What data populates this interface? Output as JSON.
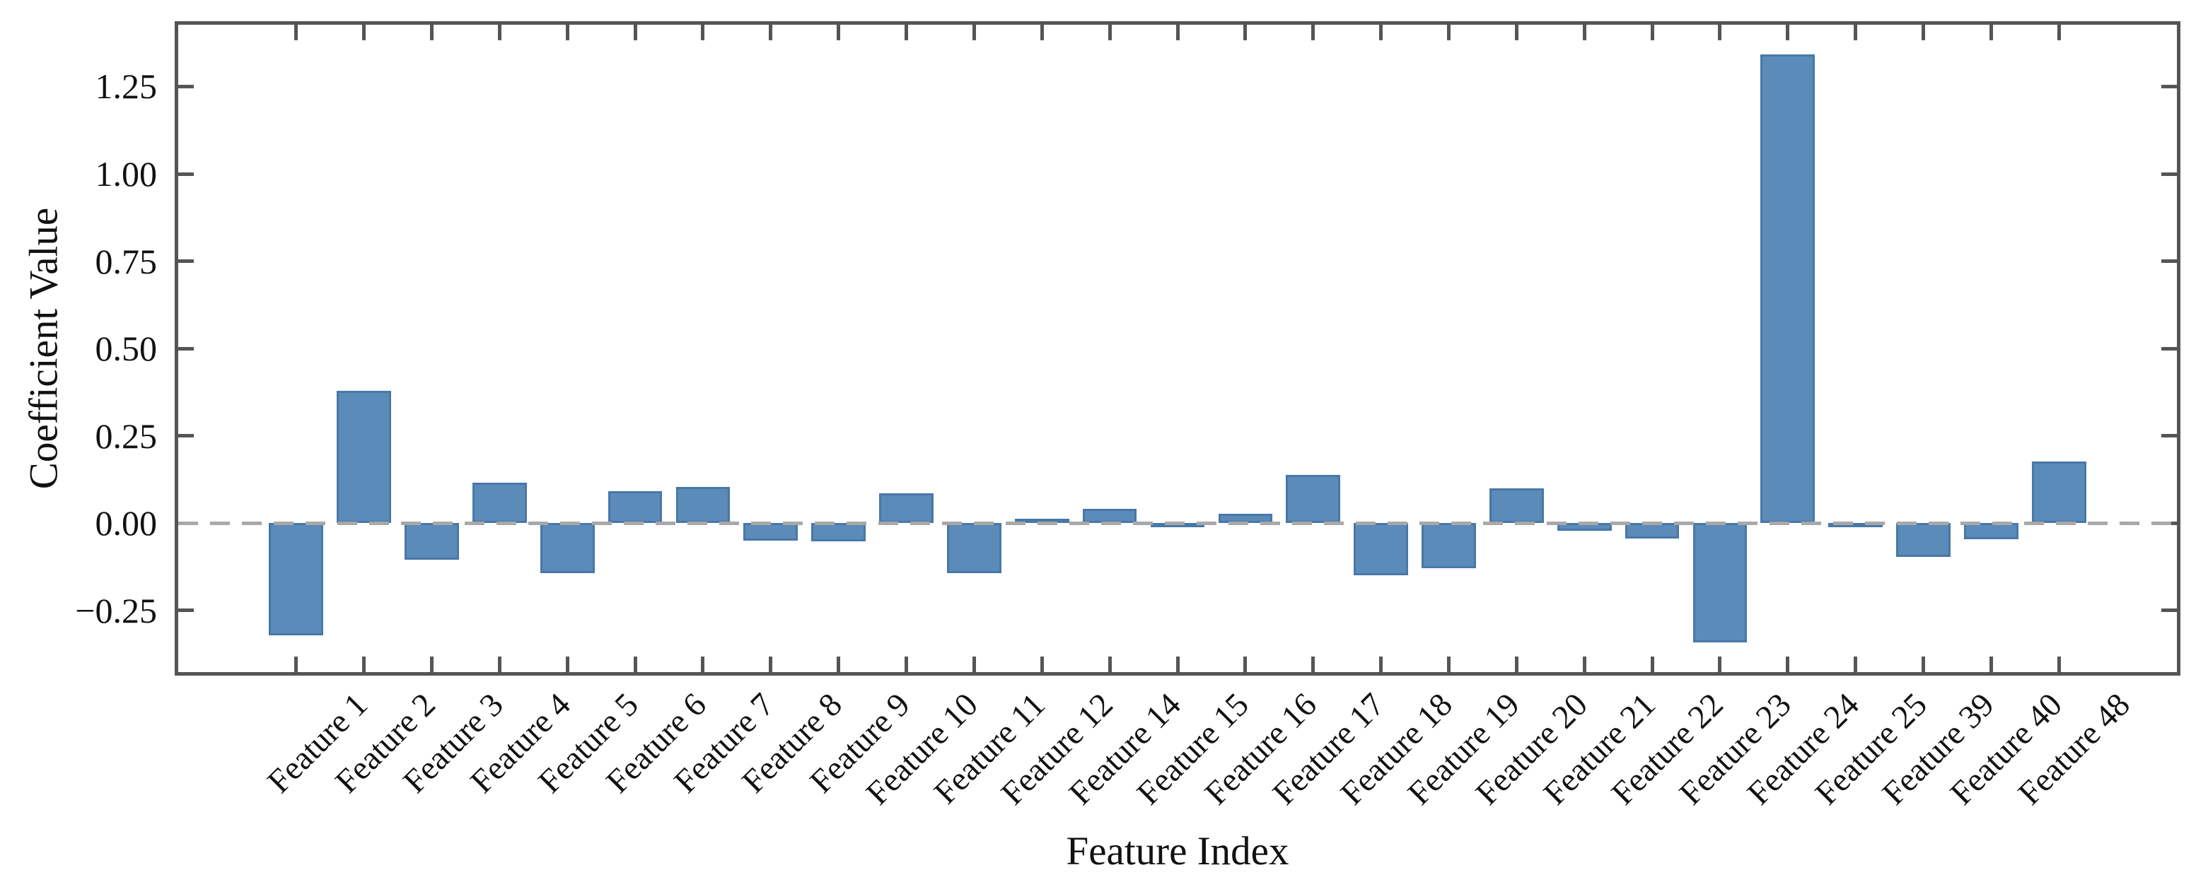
{
  "chart_data": {
    "type": "bar",
    "title": "",
    "xlabel": "Feature Index",
    "ylabel": "Coefficient Value",
    "categories": [
      "Feature 1",
      "Feature 2",
      "Feature 3",
      "Feature 4",
      "Feature 5",
      "Feature 6",
      "Feature 7",
      "Feature 8",
      "Feature 9",
      "Feature 10",
      "Feature 11",
      "Feature 12",
      "Feature 14",
      "Feature 15",
      "Feature 16",
      "Feature 17",
      "Feature 18",
      "Feature 19",
      "Feature 20",
      "Feature 21",
      "Feature 22",
      "Feature 23",
      "Feature 24",
      "Feature 25",
      "Feature 39",
      "Feature 40",
      "Feature 48"
    ],
    "values": [
      -0.32,
      0.38,
      -0.105,
      0.117,
      -0.143,
      0.091,
      0.105,
      -0.05,
      -0.052,
      0.085,
      -0.143,
      0.013,
      0.041,
      -0.01,
      0.028,
      0.139,
      -0.149,
      -0.129,
      0.1,
      -0.022,
      -0.044,
      -0.342,
      1.342,
      -0.012,
      -0.097,
      -0.045,
      0.177
    ],
    "ylim": [
      -0.426,
      1.427
    ],
    "yticks": [
      {
        "v": 1.25,
        "label": "1.25"
      },
      {
        "v": 1.0,
        "label": "1.00"
      },
      {
        "v": 0.75,
        "label": "0.75"
      },
      {
        "v": 0.5,
        "label": "0.50"
      },
      {
        "v": 0.25,
        "label": "0.25"
      },
      {
        "v": 0.0,
        "label": "0.00"
      },
      {
        "v": -0.25,
        "label": "−0.25"
      }
    ],
    "x_edge_pad_units": 1.74,
    "bar_width_frac": 0.8,
    "zero_line": true,
    "grid": false,
    "legend": null,
    "bar_color": "#5b8bb8",
    "bar_edge_color": "#4878a8",
    "frame_color": "#555555",
    "zero_line_color": "#a8a8a8",
    "text_color": "#111111"
  }
}
